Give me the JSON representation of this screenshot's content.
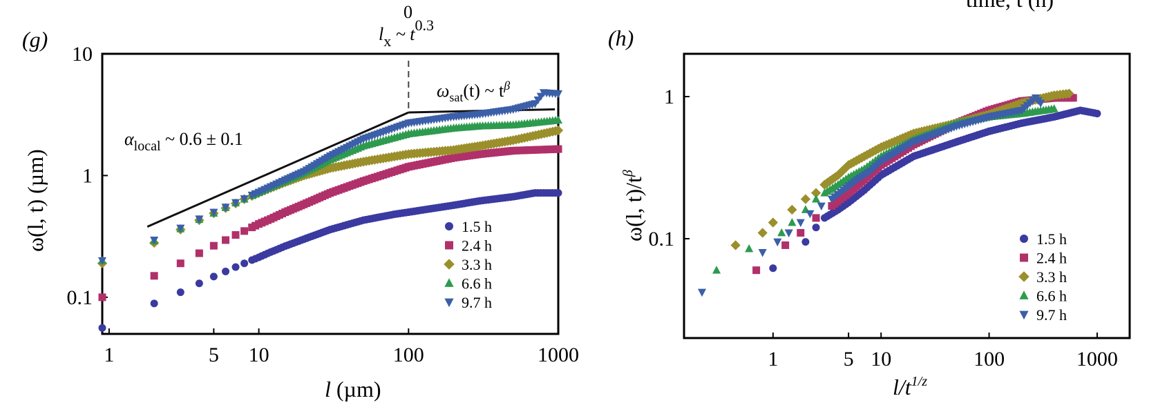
{
  "chart_data": [
    {
      "panel": "(g)",
      "type": "scatter",
      "xscale": "log",
      "yscale": "log",
      "xlim": [
        0.9,
        1000
      ],
      "ylim": [
        0.05,
        10
      ],
      "xlabel": "l (µm)",
      "ylabel": "ω(l, t) (µm)",
      "xticks": [
        1,
        5,
        10,
        100,
        1000
      ],
      "yticks": [
        0.1,
        1,
        10
      ],
      "legend_position": "lower-right",
      "series": [
        {
          "name": "1.5 h",
          "marker": "circle",
          "color": "#3a3aa0",
          "x": [
            0.9,
            2,
            3,
            4,
            5,
            6,
            7,
            8,
            9,
            10,
            12,
            15,
            20,
            30,
            50,
            80,
            100,
            200,
            300,
            500,
            700,
            1000
          ],
          "y": [
            0.056,
            0.089,
            0.11,
            0.13,
            0.148,
            0.163,
            0.177,
            0.19,
            0.202,
            0.213,
            0.235,
            0.263,
            0.3,
            0.36,
            0.43,
            0.48,
            0.5,
            0.57,
            0.62,
            0.67,
            0.72,
            0.72
          ]
        },
        {
          "name": "2.4 h",
          "marker": "square",
          "color": "#b0306a",
          "x": [
            0.9,
            2,
            3,
            4,
            5,
            6,
            7,
            8,
            9,
            10,
            12,
            15,
            20,
            30,
            50,
            100,
            200,
            300,
            500,
            1000
          ],
          "y": [
            0.1,
            0.15,
            0.19,
            0.23,
            0.265,
            0.295,
            0.325,
            0.35,
            0.375,
            0.4,
            0.44,
            0.5,
            0.58,
            0.72,
            0.9,
            1.18,
            1.4,
            1.5,
            1.6,
            1.65
          ]
        },
        {
          "name": "3.3 h",
          "marker": "diamond",
          "color": "#9b8f2c",
          "x": [
            0.9,
            2,
            3,
            4,
            5,
            6,
            7,
            8,
            9,
            10,
            12,
            15,
            20,
            30,
            50,
            100,
            200,
            300,
            500,
            1000
          ],
          "y": [
            0.19,
            0.28,
            0.36,
            0.43,
            0.49,
            0.54,
            0.59,
            0.64,
            0.68,
            0.72,
            0.79,
            0.88,
            1.0,
            1.15,
            1.3,
            1.5,
            1.62,
            1.75,
            1.95,
            2.35
          ]
        },
        {
          "name": "6.6 h",
          "marker": "triangle-up",
          "color": "#2e9a4e",
          "x": [
            0.9,
            2,
            3,
            4,
            5,
            6,
            7,
            8,
            9,
            10,
            12,
            15,
            20,
            30,
            50,
            100,
            200,
            300,
            500,
            1000
          ],
          "y": [
            0.2,
            0.29,
            0.365,
            0.435,
            0.49,
            0.545,
            0.595,
            0.64,
            0.685,
            0.725,
            0.8,
            0.9,
            1.05,
            1.35,
            1.75,
            2.2,
            2.45,
            2.55,
            2.6,
            2.85
          ]
        },
        {
          "name": "9.7 h",
          "marker": "triangle-down",
          "color": "#3b5fa8",
          "x": [
            0.9,
            2,
            3,
            4,
            5,
            6,
            7,
            8,
            9,
            10,
            12,
            15,
            20,
            30,
            50,
            100,
            200,
            300,
            500,
            700,
            800,
            1000
          ],
          "y": [
            0.2,
            0.295,
            0.37,
            0.44,
            0.5,
            0.55,
            0.6,
            0.645,
            0.69,
            0.73,
            0.81,
            0.92,
            1.08,
            1.45,
            2.0,
            2.7,
            3.05,
            3.2,
            3.5,
            3.9,
            4.8,
            4.7
          ]
        }
      ],
      "annotations": {
        "fit_line": {
          "x": [
            1.8,
            100
          ],
          "y": [
            0.38,
            3.3
          ]
        },
        "sat_line": {
          "x": [
            100,
            950
          ],
          "y": [
            3.3,
            3.5
          ]
        },
        "crossover_x": 100,
        "alpha_label_main": "α",
        "alpha_label_sub": "local",
        "alpha_label_tail": " ~ 0.6 ± 0.1",
        "sat_label_main": "ω",
        "sat_label_sub": "sat",
        "sat_label_mid": "(t) ~ t",
        "sat_label_sup": "β",
        "lx_main": "l",
        "lx_sub": "x",
        "lx_mid": " ~ t",
        "lx_sup": "0.3",
        "lx_top": "0"
      }
    },
    {
      "panel": "(h)",
      "type": "scatter",
      "xscale": "log",
      "yscale": "log",
      "xlim": [
        0.15,
        2000
      ],
      "ylim": [
        0.02,
        2
      ],
      "xlabel": "l/t^(1/z)",
      "ylabel": "ω(l, t)/t^β",
      "xticks": [
        1,
        5,
        10,
        100,
        1000
      ],
      "yticks": [
        0.1,
        1
      ],
      "legend_position": "lower-right",
      "series": [
        {
          "name": "1.5 h",
          "marker": "circle",
          "color": "#3a3aa0",
          "x": [
            1,
            2,
            2.5,
            3,
            4,
            5,
            7,
            10,
            20,
            50,
            100,
            200,
            400,
            700,
            1000
          ],
          "y": [
            0.062,
            0.095,
            0.12,
            0.14,
            0.16,
            0.18,
            0.22,
            0.28,
            0.38,
            0.48,
            0.57,
            0.65,
            0.72,
            0.8,
            0.76
          ]
        },
        {
          "name": "2.4 h",
          "marker": "square",
          "color": "#b0306a",
          "x": [
            0.7,
            1.3,
            1.8,
            2.5,
            3.5,
            5,
            7,
            10,
            20,
            50,
            100,
            200,
            400,
            600
          ],
          "y": [
            0.06,
            0.09,
            0.11,
            0.14,
            0.17,
            0.21,
            0.26,
            0.33,
            0.46,
            0.65,
            0.8,
            0.93,
            0.98,
            0.98
          ]
        },
        {
          "name": "3.3 h",
          "marker": "diamond",
          "color": "#9b8f2c",
          "x": [
            0.45,
            0.8,
            1,
            1.5,
            2,
            2.5,
            3,
            4,
            5,
            7,
            10,
            20,
            50,
            100,
            200,
            400,
            550
          ],
          "y": [
            0.09,
            0.11,
            0.13,
            0.16,
            0.19,
            0.21,
            0.24,
            0.28,
            0.33,
            0.38,
            0.44,
            0.55,
            0.65,
            0.75,
            0.9,
            1.02,
            1.05
          ]
        },
        {
          "name": "6.6 h",
          "marker": "triangle-up",
          "color": "#2e9a4e",
          "x": [
            0.3,
            0.6,
            1.2,
            1.5,
            2,
            2.5,
            3,
            4,
            5,
            7,
            10,
            20,
            50,
            100,
            200,
            400
          ],
          "y": [
            0.06,
            0.085,
            0.11,
            0.13,
            0.16,
            0.19,
            0.21,
            0.24,
            0.27,
            0.31,
            0.38,
            0.5,
            0.65,
            0.72,
            0.76,
            0.82
          ]
        },
        {
          "name": "9.7 h",
          "marker": "triangle-down",
          "color": "#3b5fa8",
          "x": [
            0.22,
            0.8,
            1.1,
            1.4,
            1.8,
            2.2,
            2.8,
            3.5,
            4.5,
            6,
            8,
            10,
            20,
            50,
            100,
            200,
            270,
            300
          ],
          "y": [
            0.042,
            0.08,
            0.095,
            0.11,
            0.13,
            0.15,
            0.17,
            0.19,
            0.22,
            0.26,
            0.3,
            0.35,
            0.48,
            0.62,
            0.72,
            0.8,
            0.98,
            0.9
          ]
        }
      ]
    }
  ],
  "labels": {
    "panel_g": "(g)",
    "panel_h": "(h)",
    "top_right": "time, t (h)",
    "g_xlabel_var": "l",
    "g_xlabel_unit": " (µm)",
    "g_ylabel": "ω(l, t) (µm)",
    "h_xlabel_main": "l/t",
    "h_xlabel_sup": "1/z",
    "h_ylabel_main": "ω(l, t)/t",
    "h_ylabel_sup": "β"
  }
}
